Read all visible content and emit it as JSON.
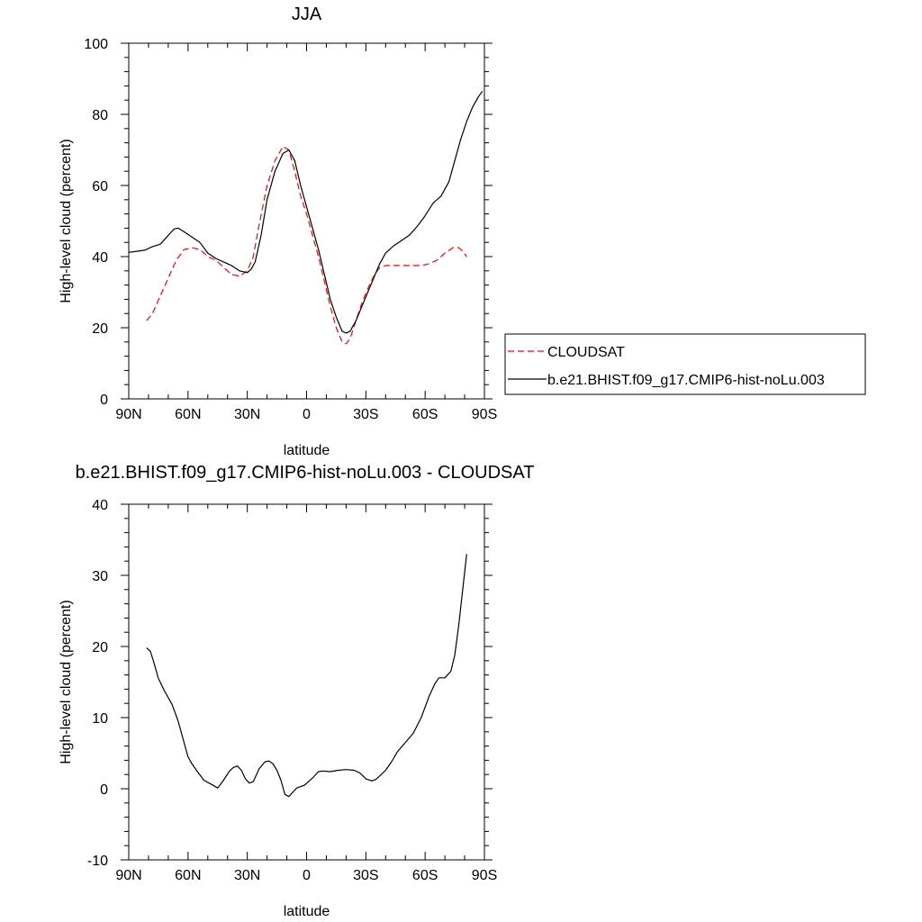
{
  "chart_data": [
    {
      "type": "line",
      "title": "JJA",
      "xlabel": "latitude",
      "ylabel": "High-level cloud (percent)",
      "xlim": [
        -90,
        90
      ],
      "ylim": [
        0,
        100
      ],
      "x_ticks": [
        -90,
        -60,
        -30,
        0,
        30,
        60,
        90
      ],
      "x_tick_labels": [
        "90N",
        "60N",
        "30N",
        "0",
        "30S",
        "60S",
        "90S"
      ],
      "y_ticks": [
        0,
        20,
        40,
        60,
        80,
        100
      ],
      "y_tick_labels": [
        "0",
        "20",
        "40",
        "60",
        "80",
        "100"
      ],
      "grid": false,
      "legend_placement": "right",
      "series": [
        {
          "name": "CLOUDSAT",
          "color": "#ff0000",
          "style": "dashed",
          "x": [
            -81,
            -78,
            -74,
            -70,
            -66,
            -62,
            -58,
            -54,
            -50,
            -46,
            -42,
            -38,
            -34,
            -30,
            -27,
            -24,
            -20,
            -16,
            -12,
            -9,
            -6,
            -3,
            0,
            3,
            6,
            9,
            12,
            15,
            18,
            20,
            22,
            25,
            28,
            31,
            34,
            37,
            40,
            43,
            46,
            50,
            54,
            58,
            62,
            66,
            70,
            74,
            77,
            79,
            81
          ],
          "y": [
            22,
            24,
            29,
            34,
            39,
            42,
            42.5,
            42,
            40,
            39,
            37,
            35,
            34.5,
            36,
            40,
            49,
            60,
            67,
            71,
            70,
            64,
            57,
            52,
            46,
            40,
            33,
            26,
            20,
            16,
            15.5,
            17,
            22,
            27,
            31,
            34.5,
            37,
            37.5,
            37.5,
            37.5,
            37.5,
            37.5,
            37.5,
            38,
            39,
            41,
            42.5,
            42.5,
            41.5,
            40
          ]
        },
        {
          "name": "b.e21.BHIST.f09_g17.CMIP6-hist-noLu.003",
          "color": "#000000",
          "style": "solid",
          "x": [
            -90,
            -86,
            -82,
            -78,
            -74,
            -70,
            -67,
            -65,
            -62,
            -58,
            -54,
            -50,
            -46,
            -42,
            -38,
            -34,
            -30,
            -28,
            -26,
            -23,
            -20,
            -16,
            -12,
            -9,
            -6,
            -3,
            0,
            3,
            6,
            9,
            12,
            15,
            18,
            20,
            22,
            25,
            28,
            31,
            34,
            37,
            40,
            44,
            48,
            52,
            56,
            60,
            64,
            68,
            72,
            75,
            78,
            81,
            84,
            87,
            89
          ],
          "y": [
            41.2,
            41.5,
            41.8,
            42.8,
            43.5,
            46,
            47.8,
            48,
            47,
            45.5,
            44,
            41,
            39.5,
            38.5,
            37.5,
            36,
            35.5,
            36.5,
            38.5,
            46,
            56,
            64,
            69,
            70,
            67,
            60,
            54,
            48,
            42,
            35,
            28,
            23,
            19,
            18.5,
            19,
            22,
            26,
            30,
            34,
            38,
            41,
            43,
            44.5,
            46,
            48.5,
            51.5,
            55,
            57,
            61,
            67,
            73,
            78,
            82,
            85,
            86.5
          ]
        }
      ]
    },
    {
      "type": "line",
      "title": "b.e21.BHIST.f09_g17.CMIP6-hist-noLu.003 - CLOUDSAT",
      "xlabel": "latitude",
      "ylabel": "High-level cloud (percent)",
      "xlim": [
        -90,
        90
      ],
      "ylim": [
        -10,
        40
      ],
      "x_ticks": [
        -90,
        -60,
        -30,
        0,
        30,
        60,
        90
      ],
      "x_tick_labels": [
        "90N",
        "60N",
        "30N",
        "0",
        "30S",
        "60S",
        "90S"
      ],
      "y_ticks": [
        -10,
        0,
        10,
        20,
        30,
        40
      ],
      "y_tick_labels": [
        "-10",
        "0",
        "10",
        "20",
        "30",
        "40"
      ],
      "grid": false,
      "series": [
        {
          "color": "#000000",
          "style": "solid",
          "x": [
            -81,
            -79,
            -77,
            -75,
            -72,
            -68,
            -65,
            -62,
            -60,
            -58,
            -55,
            -52,
            -48,
            -45,
            -42,
            -39,
            -37,
            -35,
            -33,
            -31,
            -29,
            -27,
            -24,
            -21,
            -19,
            -17,
            -15,
            -13,
            -11,
            -9,
            -7,
            -5,
            -3,
            -1,
            1,
            3,
            6,
            8,
            12,
            16,
            20,
            24,
            27,
            30,
            33,
            35,
            37,
            40,
            43,
            46,
            50,
            54,
            58,
            62,
            65,
            67,
            70,
            73,
            75,
            77,
            79,
            81
          ],
          "y": [
            19.8,
            19.3,
            17.5,
            15.5,
            13.8,
            11.8,
            9.5,
            6.5,
            4.5,
            3.5,
            2.3,
            1.2,
            0.6,
            0.1,
            1.2,
            2.5,
            3.0,
            3.2,
            2.6,
            1.4,
            0.8,
            1.0,
            2.8,
            3.8,
            3.9,
            3.5,
            2.6,
            1.2,
            -0.8,
            -1.1,
            -0.5,
            0.1,
            0.3,
            0.5,
            1.0,
            1.5,
            2.4,
            2.5,
            2.4,
            2.6,
            2.7,
            2.6,
            2.2,
            1.4,
            1.1,
            1.3,
            1.8,
            2.6,
            3.8,
            5.2,
            6.5,
            7.8,
            10.0,
            13.0,
            14.8,
            15.6,
            15.6,
            16.5,
            18.8,
            23.0,
            28.0,
            33.0
          ]
        }
      ]
    }
  ]
}
